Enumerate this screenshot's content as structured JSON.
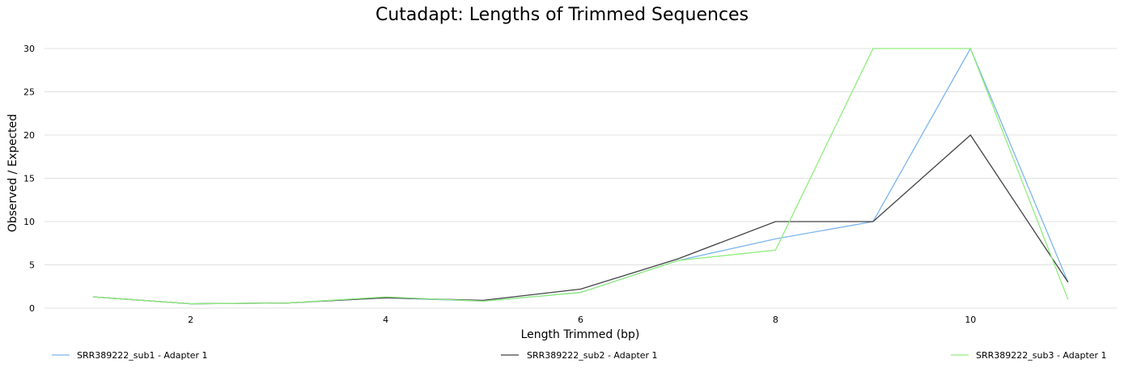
{
  "chart_data": {
    "type": "line",
    "title": "Cutadapt: Lengths of Trimmed Sequences",
    "xlabel": "Length Trimmed (bp)",
    "ylabel": "Observed / Expected",
    "xlim": [
      0.5,
      11.5
    ],
    "ylim": [
      0,
      30
    ],
    "xticks": [
      2,
      4,
      6,
      8,
      10
    ],
    "yticks": [
      0,
      5,
      10,
      15,
      20,
      25,
      30
    ],
    "grid": "horizontal",
    "legend_position": "bottom",
    "x": [
      1,
      2,
      3,
      4,
      5,
      6,
      7,
      8,
      9,
      10,
      11
    ],
    "series": [
      {
        "name": "SRR389222_sub1 - Adapter 1",
        "color": "#7cb5ec",
        "values": [
          1.3,
          0.5,
          0.6,
          1.2,
          0.8,
          1.8,
          5.5,
          8.0,
          10.0,
          30.0,
          3.0
        ]
      },
      {
        "name": "SRR389222_sub2 - Adapter 1",
        "color": "#434348",
        "values": [
          1.3,
          0.5,
          0.6,
          1.2,
          0.9,
          2.2,
          5.7,
          10.0,
          10.0,
          20.0,
          3.0
        ]
      },
      {
        "name": "SRR389222_sub3 - Adapter 1",
        "color": "#90ed7d",
        "values": [
          1.3,
          0.5,
          0.6,
          1.3,
          0.8,
          1.8,
          5.5,
          6.7,
          30.0,
          30.0,
          1.0
        ]
      }
    ]
  }
}
